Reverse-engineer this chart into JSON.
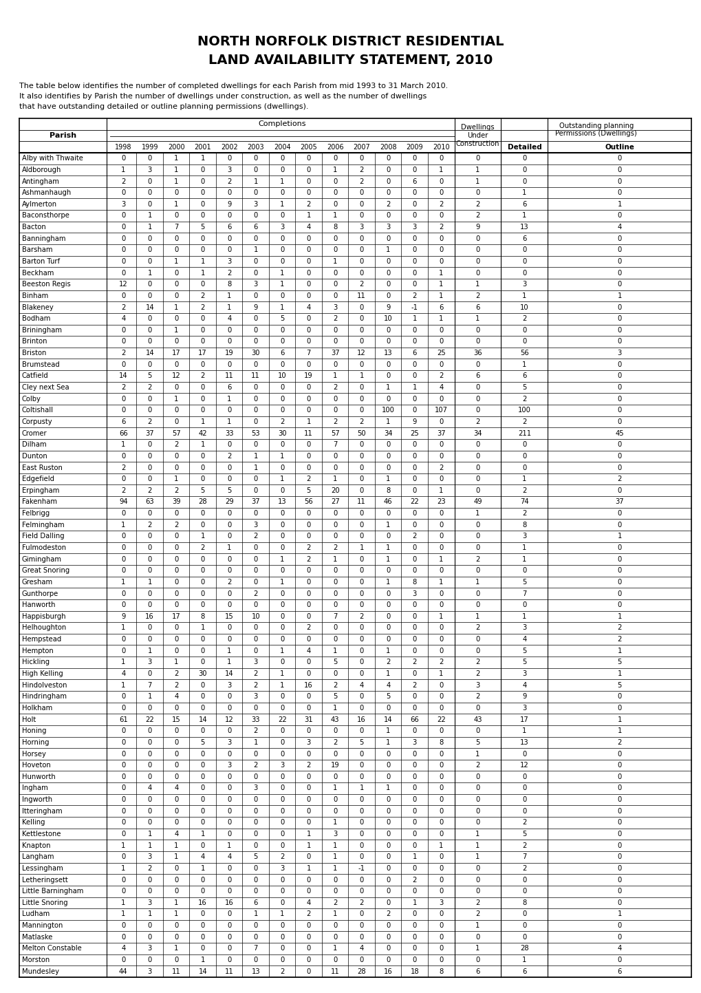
{
  "title_line1": "NORTH NORFOLK DISTRICT RESIDENTIAL",
  "title_line2": "LAND AVAILABILITY STATEMENT, 2010",
  "subtitle1": "The table below identifies the number of completed dwellings for each Parish from mid 1993 to 31 March 2010.",
  "subtitle2": "It also identifies by Parish the number of dwellings under construction, as well as the number of dwellings",
  "subtitle3": "that have outstanding detailed or outline planning permissions (dwellings).",
  "col_headers_completions": [
    "1998",
    "1999",
    "2000",
    "2001",
    "2002",
    "2003",
    "2004",
    "2005",
    "2006",
    "2007",
    "2008",
    "2009",
    "2010"
  ],
  "rows": [
    [
      "Alby with Thwaite",
      0,
      0,
      1,
      1,
      0,
      0,
      0,
      0,
      0,
      0,
      0,
      0,
      0,
      0,
      0,
      0
    ],
    [
      "Aldborough",
      1,
      3,
      1,
      0,
      3,
      0,
      0,
      0,
      1,
      2,
      0,
      0,
      1,
      1,
      0,
      0
    ],
    [
      "Antingham",
      2,
      0,
      1,
      0,
      2,
      1,
      1,
      0,
      0,
      2,
      0,
      6,
      0,
      1,
      0,
      0
    ],
    [
      "Ashmanhaugh",
      0,
      0,
      0,
      0,
      0,
      0,
      0,
      0,
      0,
      0,
      0,
      0,
      0,
      0,
      1,
      0
    ],
    [
      "Aylmerton",
      3,
      0,
      1,
      0,
      9,
      3,
      1,
      2,
      0,
      0,
      2,
      0,
      2,
      2,
      6,
      1
    ],
    [
      "Baconsthorpe",
      0,
      1,
      0,
      0,
      0,
      0,
      0,
      1,
      1,
      0,
      0,
      0,
      0,
      2,
      1,
      0
    ],
    [
      "Bacton",
      0,
      1,
      7,
      5,
      6,
      6,
      3,
      4,
      8,
      3,
      3,
      3,
      2,
      9,
      13,
      4
    ],
    [
      "Banningham",
      0,
      0,
      0,
      0,
      0,
      0,
      0,
      0,
      0,
      0,
      0,
      0,
      0,
      0,
      6,
      0
    ],
    [
      "Barsham",
      0,
      0,
      0,
      0,
      0,
      1,
      0,
      0,
      0,
      0,
      1,
      0,
      0,
      0,
      0,
      0
    ],
    [
      "Barton Turf",
      0,
      0,
      1,
      1,
      3,
      0,
      0,
      0,
      1,
      0,
      0,
      0,
      0,
      0,
      0,
      0
    ],
    [
      "Beckham",
      0,
      1,
      0,
      1,
      2,
      0,
      1,
      0,
      0,
      0,
      0,
      0,
      1,
      0,
      0,
      0
    ],
    [
      "Beeston Regis",
      12,
      0,
      0,
      0,
      8,
      3,
      1,
      0,
      0,
      2,
      0,
      0,
      1,
      1,
      3,
      0
    ],
    [
      "Binham",
      0,
      0,
      0,
      2,
      1,
      0,
      0,
      0,
      0,
      11,
      0,
      2,
      1,
      2,
      1,
      1
    ],
    [
      "Blakeney",
      2,
      14,
      1,
      2,
      1,
      9,
      1,
      4,
      3,
      0,
      9,
      -1,
      6,
      6,
      10,
      0
    ],
    [
      "Bodham",
      4,
      0,
      0,
      0,
      4,
      0,
      5,
      0,
      2,
      0,
      10,
      1,
      1,
      1,
      2,
      0
    ],
    [
      "Briningham",
      0,
      0,
      1,
      0,
      0,
      0,
      0,
      0,
      0,
      0,
      0,
      0,
      0,
      0,
      0,
      0
    ],
    [
      "Brinton",
      0,
      0,
      0,
      0,
      0,
      0,
      0,
      0,
      0,
      0,
      0,
      0,
      0,
      0,
      0,
      0
    ],
    [
      "Briston",
      2,
      14,
      17,
      17,
      19,
      30,
      6,
      7,
      37,
      12,
      13,
      6,
      25,
      36,
      56,
      3
    ],
    [
      "Brumstead",
      0,
      0,
      0,
      0,
      0,
      0,
      0,
      0,
      0,
      0,
      0,
      0,
      0,
      0,
      1,
      0
    ],
    [
      "Catfield",
      14,
      5,
      12,
      2,
      11,
      11,
      10,
      19,
      1,
      1,
      0,
      0,
      2,
      6,
      6,
      0
    ],
    [
      "Cley next Sea",
      2,
      2,
      0,
      0,
      6,
      0,
      0,
      0,
      2,
      0,
      1,
      1,
      4,
      0,
      5,
      0
    ],
    [
      "Colby",
      0,
      0,
      1,
      0,
      1,
      0,
      0,
      0,
      0,
      0,
      0,
      0,
      0,
      0,
      2,
      0
    ],
    [
      "Coltishall",
      0,
      0,
      0,
      0,
      0,
      0,
      0,
      0,
      0,
      0,
      100,
      0,
      107,
      0,
      100,
      0
    ],
    [
      "Corpusty",
      6,
      2,
      0,
      1,
      1,
      0,
      2,
      1,
      2,
      2,
      1,
      9,
      0,
      2,
      2,
      0
    ],
    [
      "Cromer",
      66,
      37,
      57,
      42,
      33,
      53,
      30,
      11,
      57,
      50,
      34,
      25,
      37,
      34,
      211,
      45
    ],
    [
      "Dilham",
      1,
      0,
      2,
      1,
      0,
      0,
      0,
      0,
      7,
      0,
      0,
      0,
      0,
      0,
      0,
      0
    ],
    [
      "Dunton",
      0,
      0,
      0,
      0,
      2,
      1,
      1,
      0,
      0,
      0,
      0,
      0,
      0,
      0,
      0,
      0
    ],
    [
      "East Ruston",
      2,
      0,
      0,
      0,
      0,
      1,
      0,
      0,
      0,
      0,
      0,
      0,
      2,
      0,
      0,
      0
    ],
    [
      "Edgefield",
      0,
      0,
      1,
      0,
      0,
      0,
      1,
      2,
      1,
      0,
      1,
      0,
      0,
      0,
      1,
      2
    ],
    [
      "Erpingham",
      2,
      2,
      2,
      5,
      5,
      0,
      0,
      5,
      20,
      0,
      8,
      0,
      1,
      0,
      2,
      0
    ],
    [
      "Fakenham",
      94,
      63,
      39,
      28,
      29,
      37,
      13,
      56,
      27,
      11,
      46,
      22,
      23,
      49,
      74,
      37
    ],
    [
      "Felbrigg",
      0,
      0,
      0,
      0,
      0,
      0,
      0,
      0,
      0,
      0,
      0,
      0,
      0,
      1,
      2,
      0
    ],
    [
      "Felmingham",
      1,
      2,
      2,
      0,
      0,
      3,
      0,
      0,
      0,
      0,
      1,
      0,
      0,
      0,
      8,
      0
    ],
    [
      "Field Dalling",
      0,
      0,
      0,
      1,
      0,
      2,
      0,
      0,
      0,
      0,
      0,
      2,
      0,
      0,
      3,
      1
    ],
    [
      "Fulmodeston",
      0,
      0,
      0,
      2,
      1,
      0,
      0,
      2,
      2,
      1,
      1,
      0,
      0,
      0,
      1,
      0
    ],
    [
      "Gimingham",
      0,
      0,
      0,
      0,
      0,
      0,
      1,
      2,
      1,
      0,
      1,
      0,
      1,
      2,
      1,
      0
    ],
    [
      "Great Snoring",
      0,
      0,
      0,
      0,
      0,
      0,
      0,
      0,
      0,
      0,
      0,
      0,
      0,
      0,
      0,
      0
    ],
    [
      "Gresham",
      1,
      1,
      0,
      0,
      2,
      0,
      1,
      0,
      0,
      0,
      1,
      8,
      1,
      1,
      5,
      0
    ],
    [
      "Gunthorpe",
      0,
      0,
      0,
      0,
      0,
      2,
      0,
      0,
      0,
      0,
      0,
      3,
      0,
      0,
      7,
      0
    ],
    [
      "Hanworth",
      0,
      0,
      0,
      0,
      0,
      0,
      0,
      0,
      0,
      0,
      0,
      0,
      0,
      0,
      0,
      0
    ],
    [
      "Happisburgh",
      9,
      16,
      17,
      8,
      15,
      10,
      0,
      0,
      7,
      2,
      0,
      0,
      1,
      1,
      1,
      1
    ],
    [
      "Helhoughton",
      1,
      0,
      0,
      1,
      0,
      0,
      0,
      2,
      0,
      0,
      0,
      0,
      0,
      2,
      3,
      2
    ],
    [
      "Hempstead",
      0,
      0,
      0,
      0,
      0,
      0,
      0,
      0,
      0,
      0,
      0,
      0,
      0,
      0,
      4,
      2
    ],
    [
      "Hempton",
      0,
      1,
      0,
      0,
      1,
      0,
      1,
      4,
      1,
      0,
      1,
      0,
      0,
      0,
      5,
      1
    ],
    [
      "Hickling",
      1,
      3,
      1,
      0,
      1,
      3,
      0,
      0,
      5,
      0,
      2,
      2,
      2,
      2,
      5,
      5
    ],
    [
      "High Kelling",
      4,
      0,
      2,
      30,
      14,
      2,
      1,
      0,
      0,
      0,
      1,
      0,
      1,
      2,
      3,
      1
    ],
    [
      "Hindolveston",
      1,
      7,
      2,
      0,
      3,
      2,
      1,
      16,
      2,
      4,
      4,
      2,
      0,
      3,
      4,
      5
    ],
    [
      "Hindringham",
      0,
      1,
      4,
      0,
      0,
      3,
      0,
      0,
      5,
      0,
      5,
      0,
      0,
      2,
      9,
      0
    ],
    [
      "Holkham",
      0,
      0,
      0,
      0,
      0,
      0,
      0,
      0,
      1,
      0,
      0,
      0,
      0,
      0,
      3,
      0
    ],
    [
      "Holt",
      61,
      22,
      15,
      14,
      12,
      33,
      22,
      31,
      43,
      16,
      14,
      66,
      22,
      43,
      17,
      1
    ],
    [
      "Honing",
      0,
      0,
      0,
      0,
      0,
      2,
      0,
      0,
      0,
      0,
      1,
      0,
      0,
      0,
      1,
      1
    ],
    [
      "Horning",
      0,
      0,
      0,
      5,
      3,
      1,
      0,
      3,
      2,
      5,
      1,
      3,
      8,
      5,
      13,
      2
    ],
    [
      "Horsey",
      0,
      0,
      0,
      0,
      0,
      0,
      0,
      0,
      0,
      0,
      0,
      0,
      0,
      1,
      0,
      0
    ],
    [
      "Hoveton",
      0,
      0,
      0,
      0,
      3,
      2,
      3,
      2,
      19,
      0,
      0,
      0,
      0,
      2,
      12,
      0
    ],
    [
      "Hunworth",
      0,
      0,
      0,
      0,
      0,
      0,
      0,
      0,
      0,
      0,
      0,
      0,
      0,
      0,
      0,
      0
    ],
    [
      "Ingham",
      0,
      4,
      4,
      0,
      0,
      3,
      0,
      0,
      1,
      1,
      1,
      0,
      0,
      0,
      0,
      0
    ],
    [
      "Ingworth",
      0,
      0,
      0,
      0,
      0,
      0,
      0,
      0,
      0,
      0,
      0,
      0,
      0,
      0,
      0,
      0
    ],
    [
      "Itteringham",
      0,
      0,
      0,
      0,
      0,
      0,
      0,
      0,
      0,
      0,
      0,
      0,
      0,
      0,
      0,
      0
    ],
    [
      "Kelling",
      0,
      0,
      0,
      0,
      0,
      0,
      0,
      0,
      1,
      0,
      0,
      0,
      0,
      0,
      2,
      0
    ],
    [
      "Kettlestone",
      0,
      1,
      4,
      1,
      0,
      0,
      0,
      1,
      3,
      0,
      0,
      0,
      0,
      1,
      5,
      0
    ],
    [
      "Knapton",
      1,
      1,
      1,
      0,
      1,
      0,
      0,
      1,
      1,
      0,
      0,
      0,
      1,
      1,
      2,
      0
    ],
    [
      "Langham",
      0,
      3,
      1,
      4,
      4,
      5,
      2,
      0,
      1,
      0,
      0,
      1,
      0,
      1,
      7,
      0
    ],
    [
      "Lessingham",
      1,
      2,
      0,
      1,
      0,
      0,
      3,
      1,
      1,
      -1,
      0,
      0,
      0,
      0,
      2,
      0
    ],
    [
      "Letheringsett",
      0,
      0,
      0,
      0,
      0,
      0,
      0,
      0,
      0,
      0,
      0,
      2,
      0,
      0,
      0,
      0
    ],
    [
      "Little Barningham",
      0,
      0,
      0,
      0,
      0,
      0,
      0,
      0,
      0,
      0,
      0,
      0,
      0,
      0,
      0,
      0
    ],
    [
      "Little Snoring",
      1,
      3,
      1,
      16,
      16,
      6,
      0,
      4,
      2,
      2,
      0,
      1,
      3,
      2,
      8,
      0
    ],
    [
      "Ludham",
      1,
      1,
      1,
      0,
      0,
      1,
      1,
      2,
      1,
      0,
      2,
      0,
      0,
      2,
      0,
      1
    ],
    [
      "Mannington",
      0,
      0,
      0,
      0,
      0,
      0,
      0,
      0,
      0,
      0,
      0,
      0,
      0,
      1,
      0,
      0
    ],
    [
      "Matlaske",
      0,
      0,
      0,
      0,
      0,
      0,
      0,
      0,
      0,
      0,
      0,
      0,
      0,
      0,
      0,
      0
    ],
    [
      "Melton Constable",
      4,
      3,
      1,
      0,
      0,
      7,
      0,
      0,
      1,
      4,
      0,
      0,
      0,
      1,
      28,
      4
    ],
    [
      "Morston",
      0,
      0,
      0,
      1,
      0,
      0,
      0,
      0,
      0,
      0,
      0,
      0,
      0,
      0,
      1,
      0
    ],
    [
      "Mundesley",
      44,
      3,
      11,
      14,
      11,
      13,
      2,
      0,
      11,
      28,
      16,
      18,
      8,
      6,
      6,
      6
    ]
  ]
}
